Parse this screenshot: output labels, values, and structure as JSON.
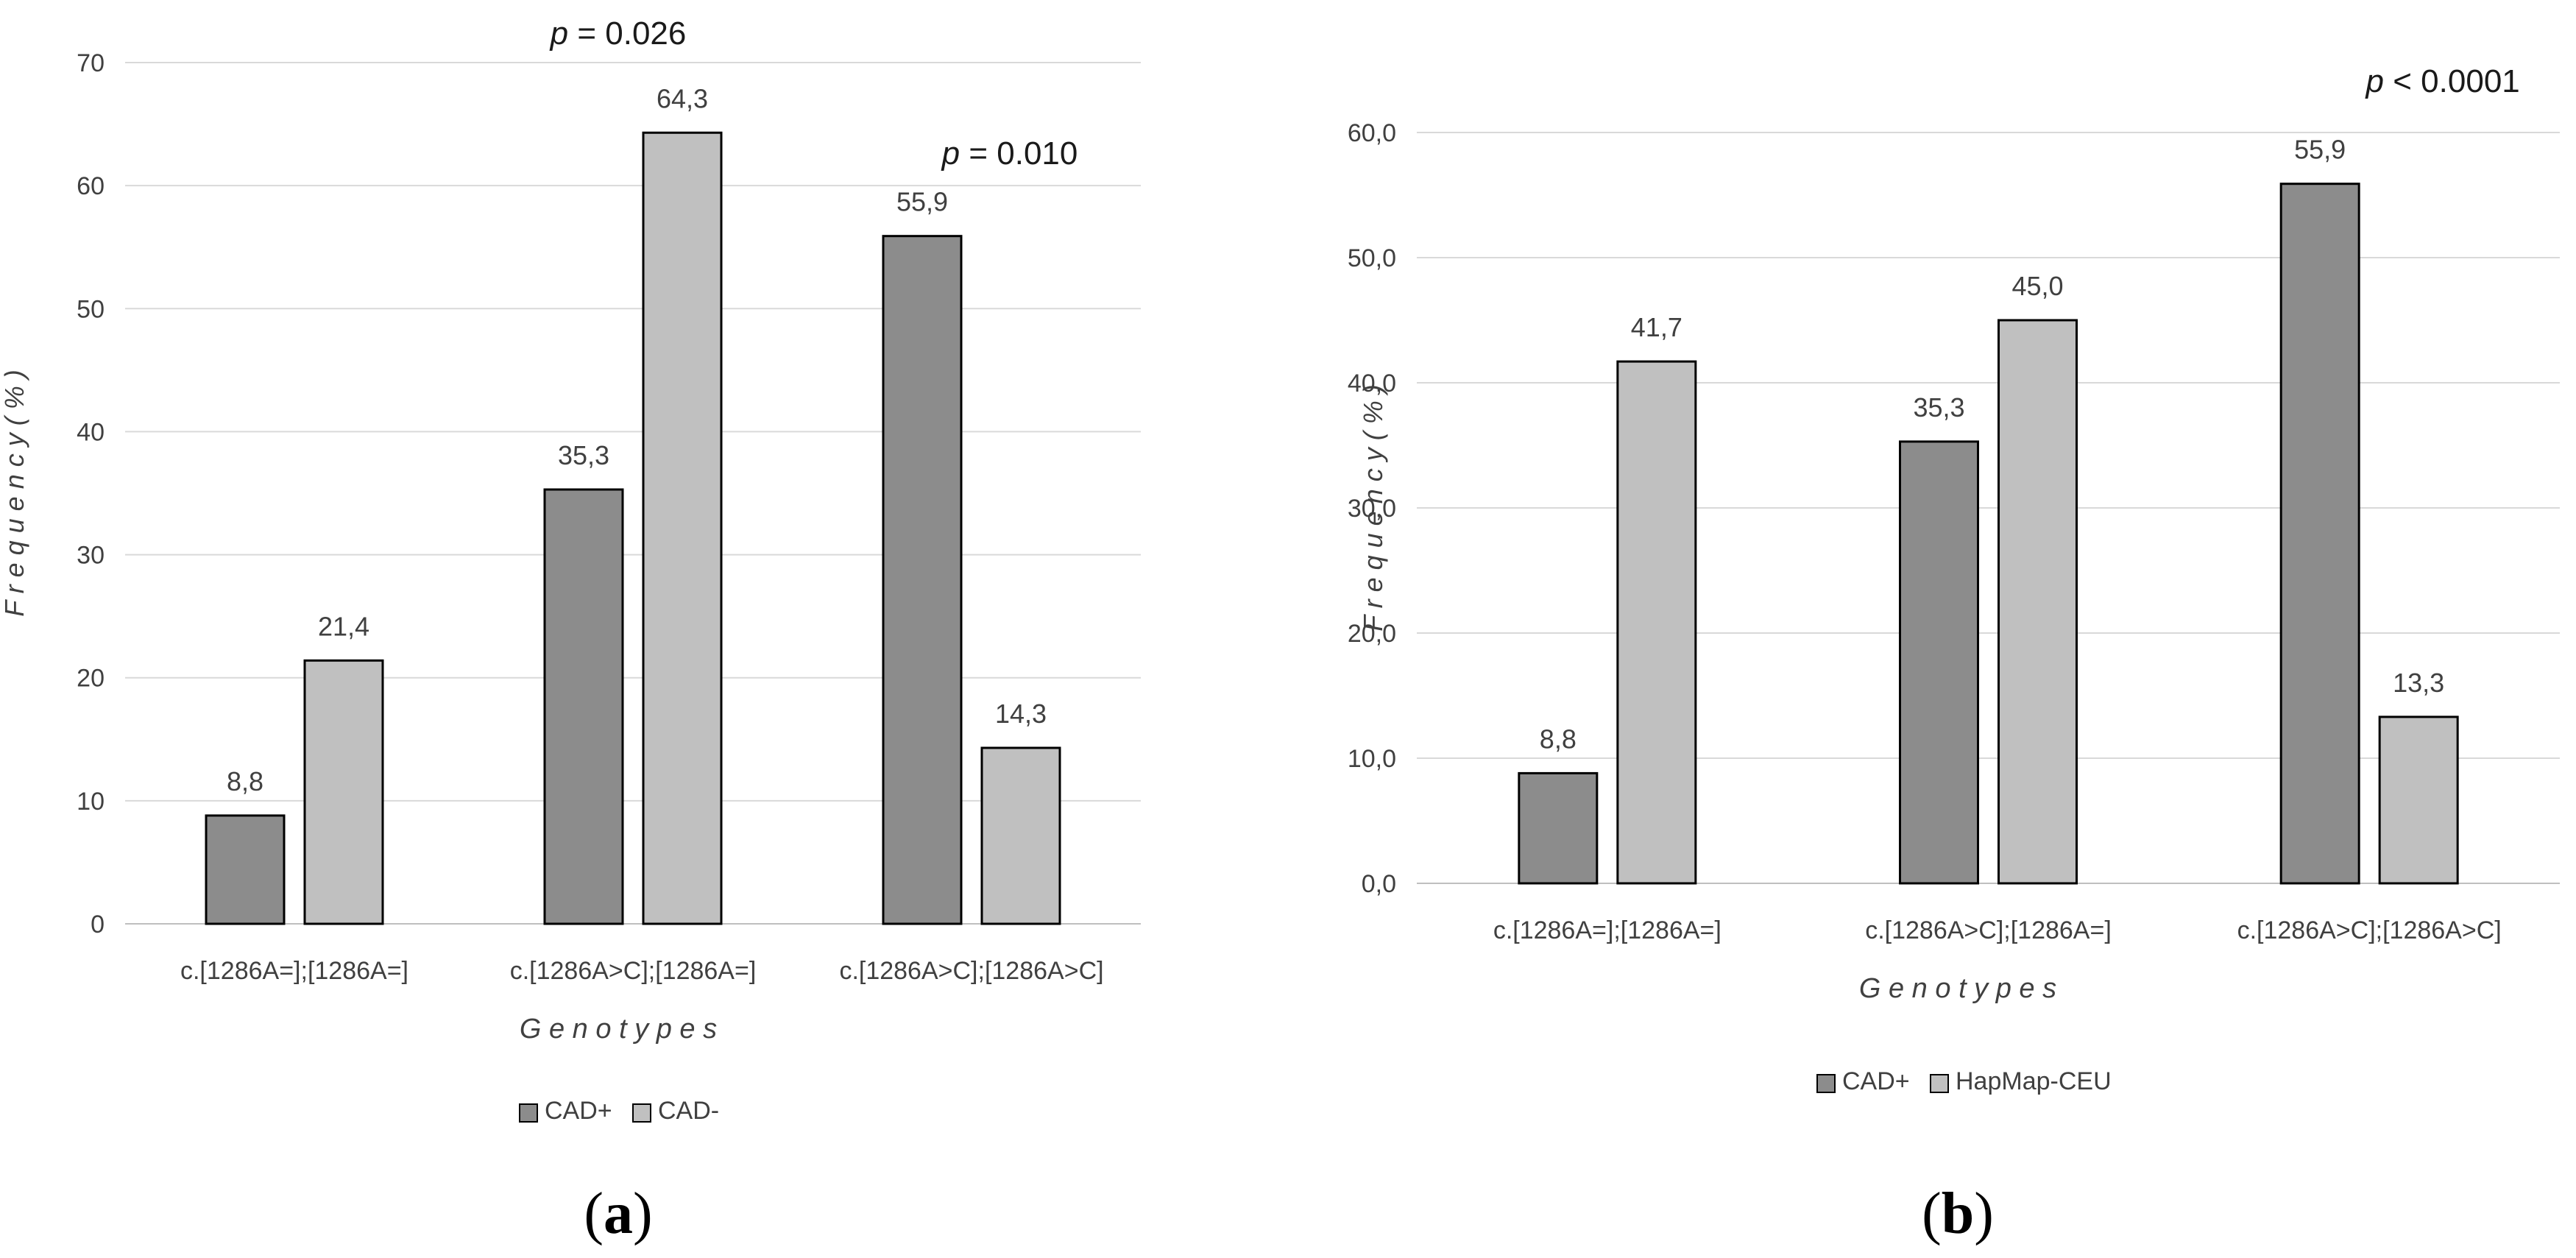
{
  "colors": {
    "series1": "#8c8c8c",
    "series2": "#c0c0c0",
    "grid": "#d9d9d9",
    "text": "#404040"
  },
  "chart_data": [
    {
      "panel": "(a)",
      "panel_letter": "a",
      "type": "bar",
      "categories": [
        "c.[1286A=];[1286A=]",
        "c.[1286A>C];[1286A=]",
        "c.[1286A>C];[1286A>C]"
      ],
      "series": [
        {
          "name": "CAD+",
          "values": [
            8.8,
            35.3,
            55.9
          ],
          "labels": [
            "8,8",
            "35,3",
            "55,9"
          ],
          "color": "#8c8c8c"
        },
        {
          "name": "CAD-",
          "values": [
            21.4,
            64.3,
            14.3
          ],
          "labels": [
            "21,4",
            "64,3",
            "14,3"
          ],
          "color": "#c0c0c0"
        }
      ],
      "xlabel": "G e n o t y p e s",
      "ylabel": "F r e q u e n c y   ( % )",
      "ylim": [
        0,
        70
      ],
      "yticks": [
        0,
        10,
        20,
        30,
        40,
        50,
        60,
        70
      ],
      "ytick_labels": [
        "0",
        "10",
        "20",
        "30",
        "40",
        "50",
        "60",
        "70"
      ],
      "annotations": [
        {
          "p": "p",
          "rest": " = 0.026",
          "category": 1
        },
        {
          "p": "p",
          "rest": " = 0.010",
          "category": 2
        }
      ],
      "grid": true,
      "legend": "bottom"
    },
    {
      "panel": "(b)",
      "panel_letter": "b",
      "type": "bar",
      "categories": [
        "c.[1286A=];[1286A=]",
        "c.[1286A>C];[1286A=]",
        "c.[1286A>C];[1286A>C]"
      ],
      "series": [
        {
          "name": "CAD+",
          "values": [
            8.8,
            35.3,
            55.9
          ],
          "labels": [
            "8,8",
            "35,3",
            "55,9"
          ],
          "color": "#8c8c8c"
        },
        {
          "name": "HapMap-CEU",
          "values": [
            41.7,
            45.0,
            13.3
          ],
          "labels": [
            "41,7",
            "45,0",
            "13,3"
          ],
          "color": "#c0c0c0"
        }
      ],
      "xlabel": "G e n o t y p e s",
      "ylabel": "F r e q u e n c y   ( % )",
      "ylim": [
        0,
        60
      ],
      "yticks": [
        0,
        10,
        20,
        30,
        40,
        50,
        60
      ],
      "ytick_labels": [
        "0,0",
        "10,0",
        "20,0",
        "30,0",
        "40,0",
        "50,0",
        "60,0"
      ],
      "annotations": [
        {
          "p": "p",
          "rest": " < 0.0001",
          "category": 2
        }
      ],
      "grid": true,
      "legend": "bottom"
    }
  ]
}
